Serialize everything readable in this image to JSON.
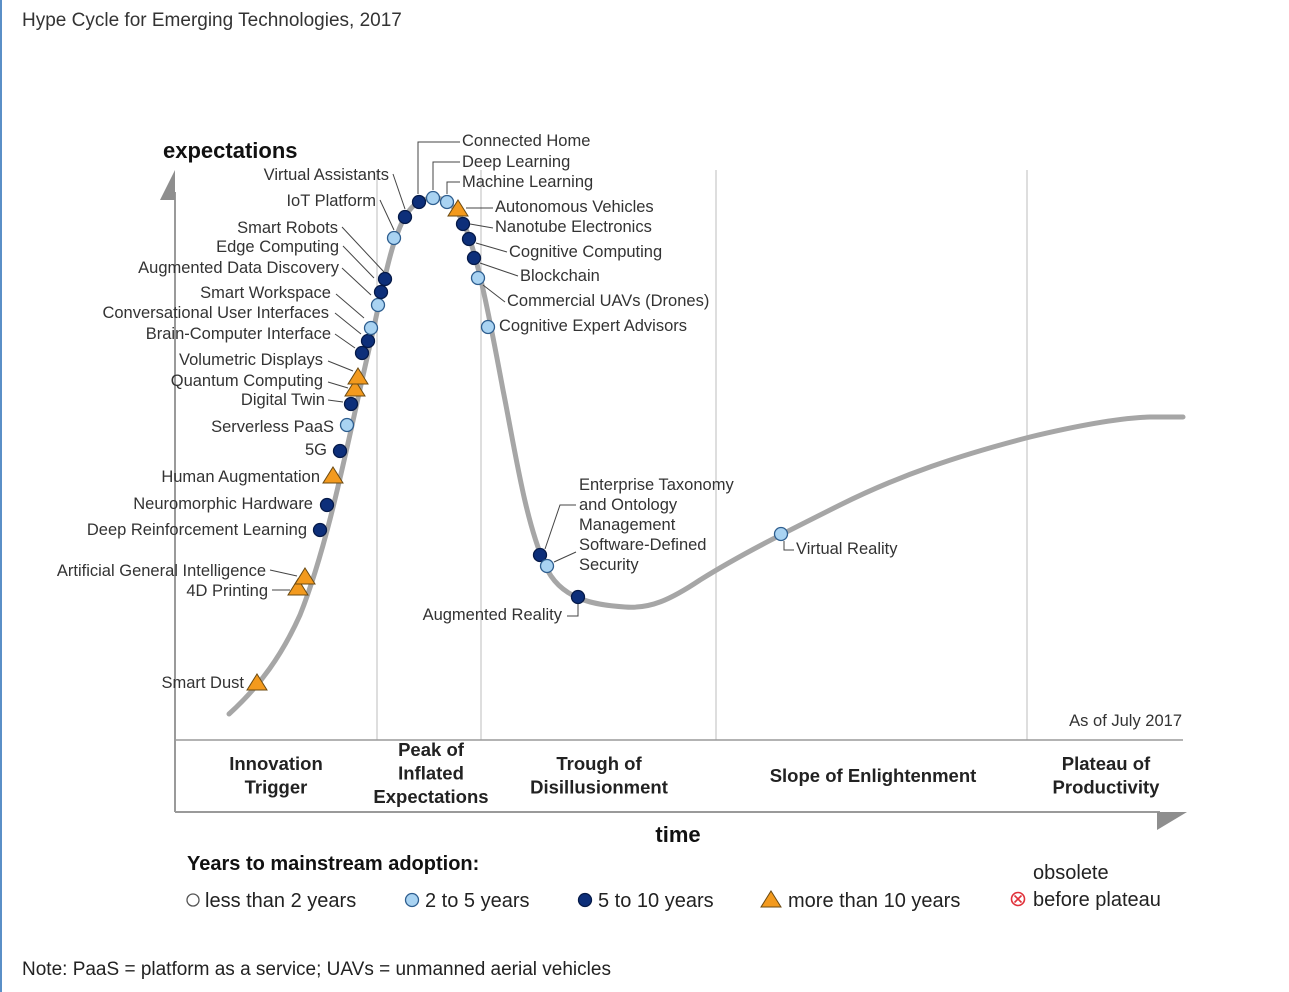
{
  "page": {
    "title": "Hype Cycle for Emerging Technologies, 2017",
    "note": "Note: PaaS = platform as a service; UAVs = unmanned aerial vehicles"
  },
  "colors": {
    "curve": "#a6a6a6",
    "light_blue": "#a9d3f2",
    "dark_blue": "#0d2f7a",
    "orange": "#f39a1e",
    "obsolete": "#e0313a",
    "grid": "#d4d4d4"
  },
  "chart_data": {
    "type": "scatter",
    "title": "",
    "ylabel": "expectations",
    "xlabel": "time",
    "as_of": "As of July 2017",
    "phases": [
      {
        "lines": [
          "Innovation",
          "Trigger"
        ]
      },
      {
        "lines": [
          "Peak of",
          "Inflated",
          "Expectations"
        ]
      },
      {
        "lines": [
          "Trough of",
          "Disillusionment"
        ]
      },
      {
        "lines": [
          "Slope of Enlightenment"
        ]
      },
      {
        "lines": [
          "Plateau of",
          "Productivity"
        ]
      }
    ],
    "legend": {
      "title": "Years to mainstream adoption:",
      "items": [
        {
          "category": "lt2",
          "label": "less than 2 years"
        },
        {
          "category": "2to5",
          "label": "2 to 5 years"
        },
        {
          "category": "5to10",
          "label": "5 to 10 years"
        },
        {
          "category": "gt10",
          "label": "more than 10 years"
        },
        {
          "category": "obsolete",
          "label_lines": [
            "obsolete",
            "before plateau"
          ]
        }
      ]
    },
    "technologies": [
      {
        "name": "Smart Dust",
        "category": "gt10",
        "phase": "Innovation Trigger"
      },
      {
        "name": "4D Printing",
        "category": "gt10",
        "phase": "Innovation Trigger"
      },
      {
        "name": "Artificial General Intelligence",
        "category": "gt10",
        "phase": "Innovation Trigger"
      },
      {
        "name": "Deep Reinforcement Learning",
        "category": "5to10",
        "phase": "Innovation Trigger"
      },
      {
        "name": "Neuromorphic Hardware",
        "category": "5to10",
        "phase": "Innovation Trigger"
      },
      {
        "name": "Human Augmentation",
        "category": "gt10",
        "phase": "Innovation Trigger"
      },
      {
        "name": "5G",
        "category": "5to10",
        "phase": "Innovation Trigger"
      },
      {
        "name": "Serverless PaaS",
        "category": "2to5",
        "phase": "Innovation Trigger"
      },
      {
        "name": "Digital Twin",
        "category": "5to10",
        "phase": "Innovation Trigger"
      },
      {
        "name": "Quantum Computing",
        "category": "gt10",
        "phase": "Innovation Trigger"
      },
      {
        "name": "Volumetric Displays",
        "category": "gt10",
        "phase": "Innovation Trigger"
      },
      {
        "name": "Brain-Computer Interface",
        "category": "5to10",
        "phase": "Innovation Trigger"
      },
      {
        "name": "Conversational User Interfaces",
        "category": "5to10",
        "phase": "Innovation Trigger"
      },
      {
        "name": "Smart Workspace",
        "category": "2to5",
        "phase": "Innovation Trigger"
      },
      {
        "name": "Augmented Data Discovery",
        "category": "2to5",
        "phase": "Innovation Trigger"
      },
      {
        "name": "Edge Computing",
        "category": "5to10",
        "phase": "Innovation Trigger"
      },
      {
        "name": "Smart Robots",
        "category": "5to10",
        "phase": "Innovation Trigger"
      },
      {
        "name": "IoT Platform",
        "category": "2to5",
        "phase": "Peak of Inflated Expectations"
      },
      {
        "name": "Virtual Assistants",
        "category": "5to10",
        "phase": "Peak of Inflated Expectations"
      },
      {
        "name": "Connected Home",
        "category": "5to10",
        "phase": "Peak of Inflated Expectations"
      },
      {
        "name": "Deep Learning",
        "category": "2to5",
        "phase": "Peak of Inflated Expectations"
      },
      {
        "name": "Machine Learning",
        "category": "2to5",
        "phase": "Peak of Inflated Expectations"
      },
      {
        "name": "Autonomous Vehicles",
        "category": "gt10",
        "phase": "Peak of Inflated Expectations"
      },
      {
        "name": "Nanotube Electronics",
        "category": "5to10",
        "phase": "Trough of Disillusionment"
      },
      {
        "name": "Cognitive Computing",
        "category": "5to10",
        "phase": "Trough of Disillusionment"
      },
      {
        "name": "Blockchain",
        "category": "5to10",
        "phase": "Trough of Disillusionment"
      },
      {
        "name": "Commercial UAVs (Drones)",
        "category": "2to5",
        "phase": "Trough of Disillusionment"
      },
      {
        "name": "Cognitive Expert Advisors",
        "category": "2to5",
        "phase": "Trough of Disillusionment"
      },
      {
        "name": "Enterprise Taxonomy and Ontology Management",
        "category": "5to10",
        "phase": "Trough of Disillusionment"
      },
      {
        "name": "Software-Defined Security",
        "category": "2to5",
        "phase": "Trough of Disillusionment"
      },
      {
        "name": "Augmented Reality",
        "category": "5to10",
        "phase": "Trough of Disillusionment"
      },
      {
        "name": "Virtual Reality",
        "category": "2to5",
        "phase": "Slope of Enlightenment"
      }
    ]
  }
}
